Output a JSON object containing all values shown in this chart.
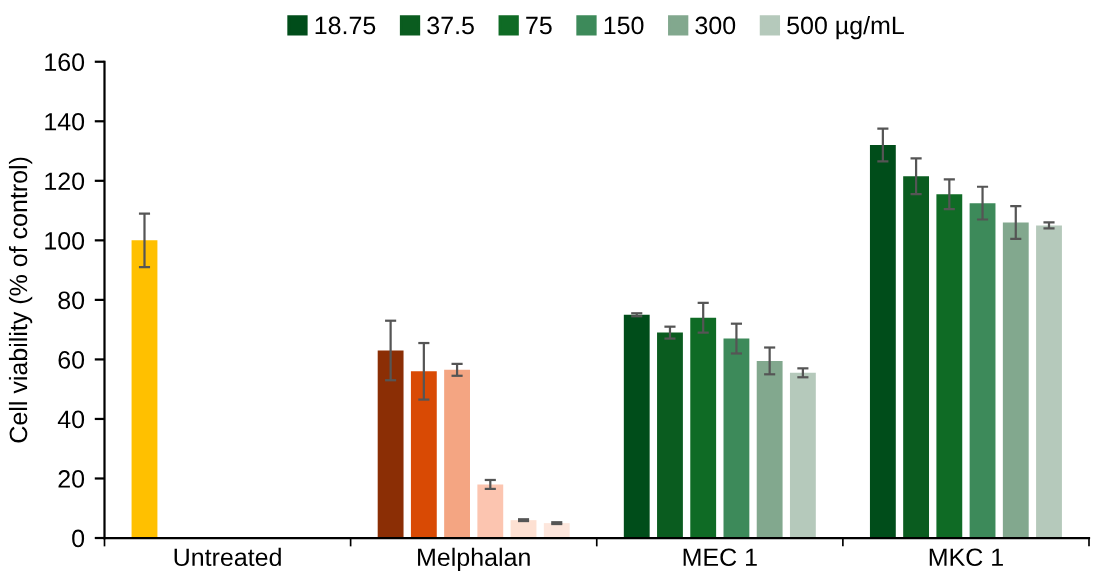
{
  "chart_data": {
    "type": "bar",
    "ylabel": "Cell viability (% of control)",
    "categories": [
      "Untreated",
      "Melphalan",
      "MEC 1",
      "MKC 1"
    ],
    "ylim": [
      0,
      160
    ],
    "yticks": [
      0,
      20,
      40,
      60,
      80,
      100,
      120,
      140,
      160
    ],
    "grid": false,
    "legend": "top",
    "series": [
      {
        "name": "18.75",
        "color": "#004d1a",
        "colors": [
          "#ffc000",
          "#8b2e05",
          "#004d1a",
          "#004d1a"
        ],
        "values": [
          100,
          63,
          75,
          132
        ],
        "errors": [
          9,
          10,
          0.5,
          5.5
        ]
      },
      {
        "name": "37.5",
        "color": "#0a5c1f",
        "colors": [
          "#0a5c1f",
          "#d94a04",
          "#0a5c1f",
          "#0a5c1f"
        ],
        "values": [
          null,
          56,
          69,
          121.5
        ],
        "errors": [
          null,
          9.5,
          2,
          6
        ]
      },
      {
        "name": "75",
        "color": "#0f6b25",
        "colors": [
          "#0f6b25",
          "#f4a582",
          "#0f6b25",
          "#0f6b25"
        ],
        "values": [
          null,
          56.5,
          74,
          115.5
        ],
        "errors": [
          null,
          2,
          5,
          5
        ]
      },
      {
        "name": "150",
        "color": "#3d8a5a",
        "colors": [
          "#3d8a5a",
          "#fcc5b0",
          "#3d8a5a",
          "#3d8a5a"
        ],
        "values": [
          null,
          18,
          67,
          112.5
        ],
        "errors": [
          null,
          1.5,
          5,
          5.5
        ]
      },
      {
        "name": "300",
        "color": "#82a88e",
        "colors": [
          "#82a88e",
          "#fde0d2",
          "#82a88e",
          "#82a88e"
        ],
        "values": [
          null,
          6,
          59.5,
          106
        ],
        "errors": [
          null,
          0.3,
          4.5,
          5.5
        ]
      },
      {
        "name": "500 µg/mL",
        "color": "#b5c9bb",
        "colors": [
          "#b5c9bb",
          "#fde6dc",
          "#b5c9bb",
          "#b5c9bb"
        ],
        "values": [
          null,
          5,
          55.5,
          105
        ],
        "errors": [
          null,
          0.3,
          1.5,
          1
        ]
      }
    ]
  }
}
